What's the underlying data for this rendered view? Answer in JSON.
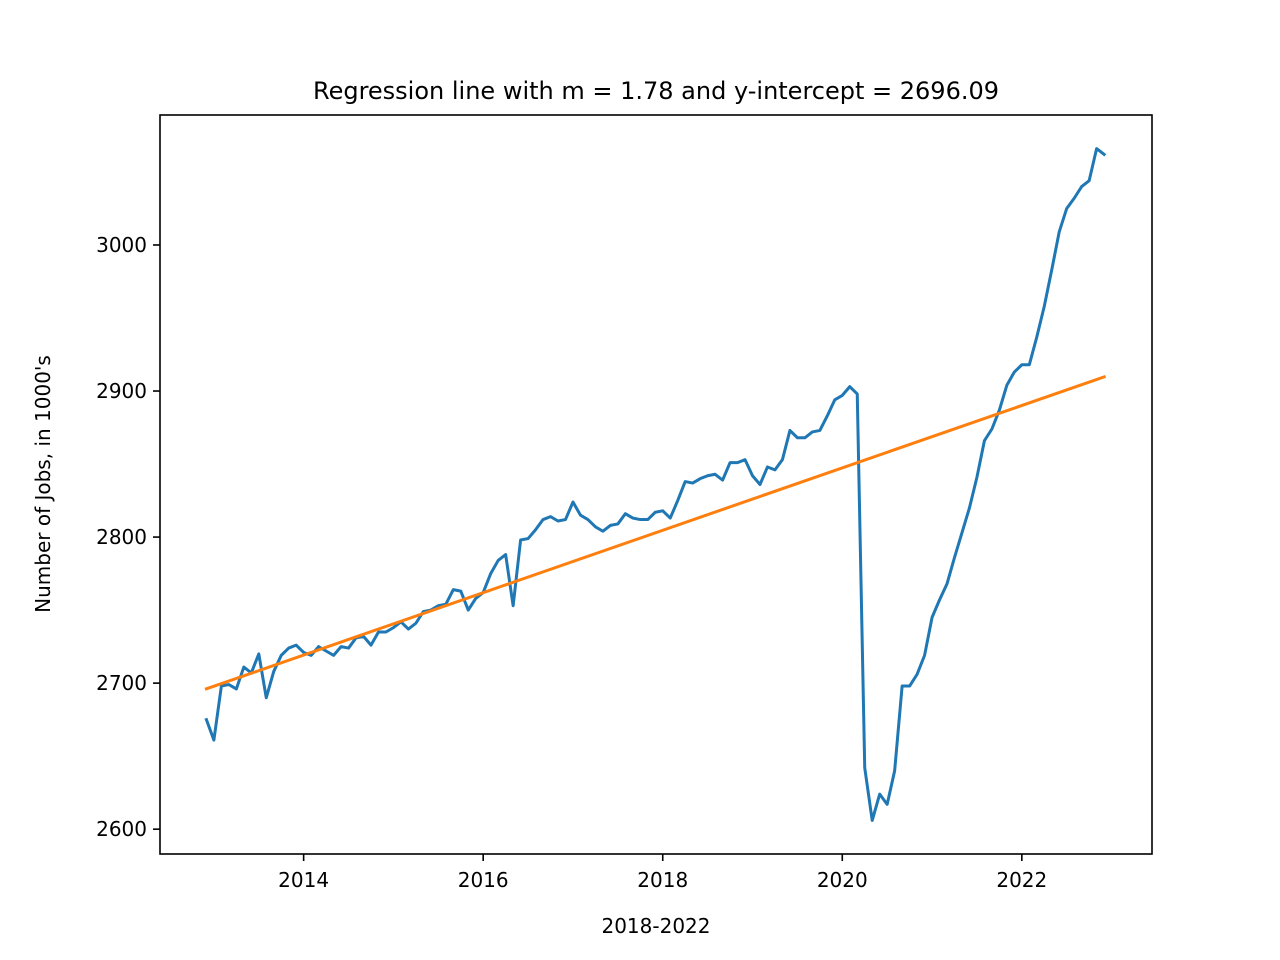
{
  "chart_data": {
    "type": "line",
    "title": "Regression line with m = 1.78 and y-intercept = 2696.09",
    "xlabel": "2018-2022",
    "ylabel": "Number of Jobs, in 1000's",
    "xlim": [
      2012.4,
      2023.45
    ],
    "ylim": [
      2583,
      3089
    ],
    "x_ticks": [
      2014,
      2016,
      2018,
      2020,
      2022
    ],
    "x_tick_labels": [
      "2014",
      "2016",
      "2018",
      "2020",
      "2022"
    ],
    "y_ticks": [
      2600,
      2700,
      2800,
      2900,
      3000
    ],
    "y_tick_labels": [
      "2600",
      "2700",
      "2800",
      "2900",
      "3000"
    ],
    "grid": false,
    "legend": "none",
    "x_start": 2012.917,
    "x_step": 0.08333,
    "series": [
      {
        "color": "#1f77b4",
        "values": [
          2675,
          2661,
          2698,
          2699,
          2696,
          2711,
          2707,
          2720,
          2690,
          2708,
          2719,
          2724,
          2726,
          2721,
          2719,
          2725,
          2722,
          2719,
          2725,
          2724,
          2731,
          2732,
          2726,
          2735,
          2735,
          2738,
          2742,
          2737,
          2741,
          2749,
          2750,
          2753,
          2754,
          2764,
          2763,
          2750,
          2758,
          2762,
          2775,
          2784,
          2788,
          2753,
          2798,
          2799,
          2805,
          2812,
          2814,
          2811,
          2812,
          2824,
          2815,
          2812,
          2807,
          2804,
          2808,
          2809,
          2816,
          2813,
          2812,
          2812,
          2817,
          2818,
          2813,
          2825,
          2838,
          2837,
          2840,
          2842,
          2843,
          2839,
          2851,
          2851,
          2853,
          2842,
          2836,
          2848,
          2846,
          2853,
          2873,
          2868,
          2868,
          2872,
          2873,
          2883,
          2894,
          2897,
          2903,
          2898,
          2642,
          2606,
          2624,
          2617,
          2640,
          2698,
          2698,
          2706,
          2719,
          2745,
          2757,
          2768,
          2786,
          2803,
          2820,
          2841,
          2866,
          2874,
          2887,
          2904,
          2913,
          2918,
          2918,
          2937,
          2958,
          2983,
          3009,
          3025,
          3032,
          3040,
          3044,
          3066,
          3062
        ]
      },
      {
        "color": "#ff7f0e",
        "values": [
          2696.09,
          2909.69
        ],
        "x": [
          2012.917,
          2022.917
        ],
        "m": 1.78,
        "intercept": 2696.09
      }
    ]
  }
}
